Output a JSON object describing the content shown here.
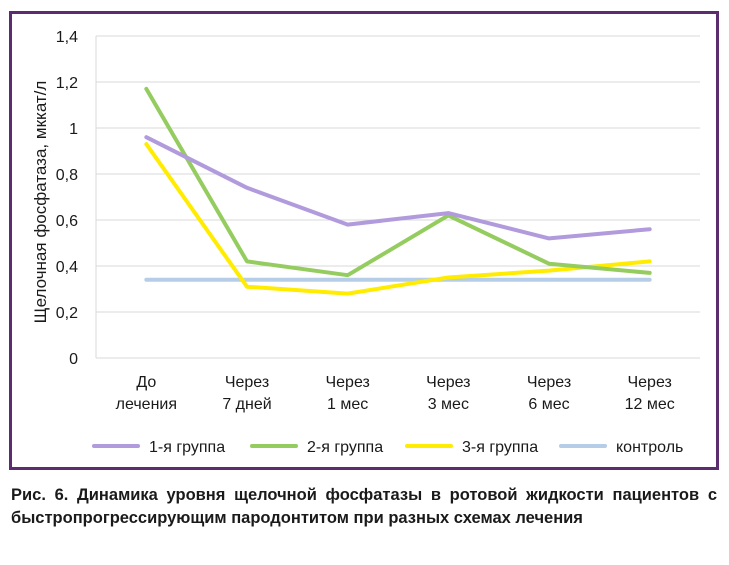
{
  "chart_data": {
    "type": "line",
    "ylabel": "Щелочная фосфатаза, мккат/л",
    "ylim": [
      0,
      1.4
    ],
    "yticks": [
      "0",
      "0,2",
      "0,4",
      "0,6",
      "0,8",
      "1",
      "1,2",
      "1,4"
    ],
    "categories": [
      [
        "До",
        "лечения"
      ],
      [
        "Через",
        "7 дней"
      ],
      [
        "Через",
        "1 мес"
      ],
      [
        "Через",
        "3 мес"
      ],
      [
        "Через",
        "6 мес"
      ],
      [
        "Через",
        "12 мес"
      ]
    ],
    "grid": true,
    "legend_position": "bottom",
    "series": [
      {
        "name": "1-я группа",
        "color": "#b19bdd",
        "values": [
          0.96,
          0.74,
          0.58,
          0.63,
          0.52,
          0.56
        ]
      },
      {
        "name": "2-я группа",
        "color": "#95cc5f",
        "values": [
          1.17,
          0.42,
          0.36,
          0.62,
          0.41,
          0.37
        ]
      },
      {
        "name": "3-я группа",
        "color": "#ffec00",
        "values": [
          0.93,
          0.31,
          0.28,
          0.35,
          0.38,
          0.42
        ]
      },
      {
        "name": "контроль",
        "color": "#b5cde6",
        "values": [
          0.34,
          0.34,
          0.34,
          0.34,
          0.34,
          0.34
        ]
      }
    ]
  },
  "caption": "Рис. 6. Динамика уровня щелочной фосфатазы в ротовой жидкости пациентов с быстропрогрессирующим пародонтитом при разных схемах лечения"
}
